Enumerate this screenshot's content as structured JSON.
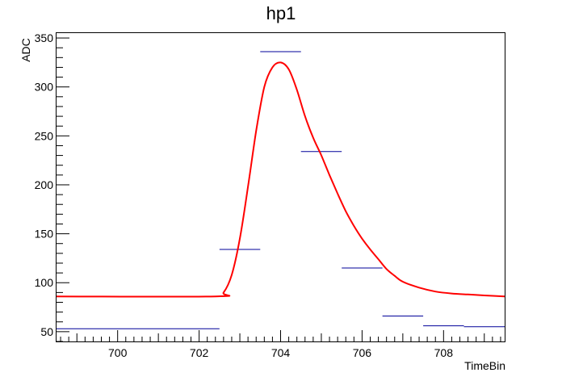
{
  "chart_data": {
    "type": "line",
    "title": "hp1",
    "xlabel": "TimeBin",
    "ylabel": "ADC",
    "xlim": [
      698.5,
      709.5
    ],
    "ylim": [
      40,
      355
    ],
    "x_ticks": [
      700,
      702,
      704,
      706,
      708
    ],
    "y_ticks": [
      50,
      100,
      150,
      200,
      250,
      300,
      350
    ],
    "grid": false,
    "legend": "none",
    "series": [
      {
        "kind": "histogram",
        "color": "#000099",
        "bins": [
          {
            "x0": 698.5,
            "x1": 702.5,
            "y": 53
          },
          {
            "x0": 702.5,
            "x1": 703.5,
            "y": 134
          },
          {
            "x0": 703.5,
            "x1": 704.5,
            "y": 336
          },
          {
            "x0": 704.5,
            "x1": 705.5,
            "y": 234
          },
          {
            "x0": 705.5,
            "x1": 706.5,
            "y": 115
          },
          {
            "x0": 706.5,
            "x1": 707.5,
            "y": 66
          },
          {
            "x0": 707.5,
            "x1": 708.5,
            "y": 56
          },
          {
            "x0": 708.5,
            "x1": 709.5,
            "y": 55
          }
        ]
      },
      {
        "kind": "fit",
        "color": "#ff0000",
        "x": [
          698.5,
          702.4,
          702.6,
          702.8,
          703.0,
          703.2,
          703.4,
          703.6,
          703.8,
          704.0,
          704.2,
          704.4,
          704.6,
          704.8,
          705.0,
          705.2,
          705.4,
          705.6,
          705.8,
          706.0,
          706.2,
          706.4,
          706.6,
          706.8,
          707.0,
          707.4,
          707.8,
          708.2,
          708.6,
          709.0,
          709.5
        ],
        "y": [
          86,
          86,
          90,
          108,
          145,
          198,
          255,
          300,
          320,
          325,
          318,
          297,
          270,
          248,
          230,
          210,
          191,
          173,
          158,
          145,
          134,
          124,
          114,
          107,
          101,
          95,
          91,
          89,
          88,
          87,
          86
        ]
      }
    ]
  }
}
